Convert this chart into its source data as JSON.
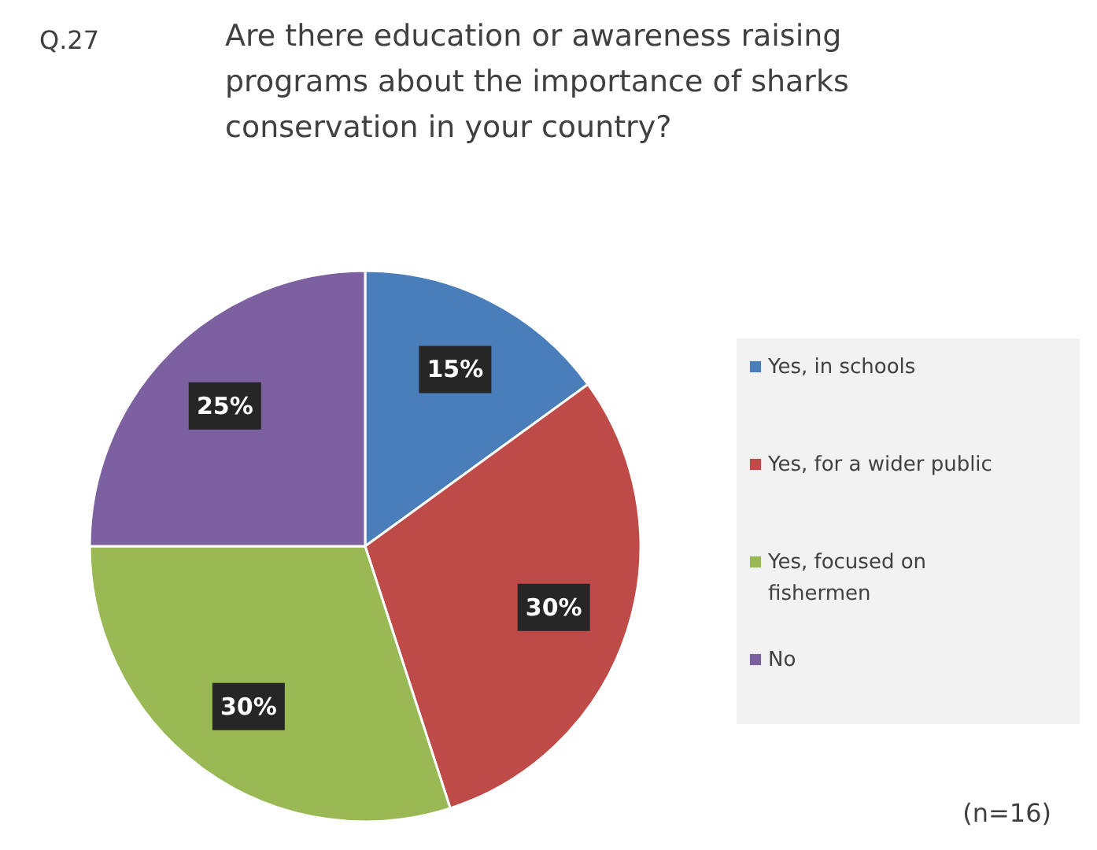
{
  "chart_data": {
    "type": "pie",
    "title": "Q.27",
    "subtitle": "Are there education or awareness raising programs about the importance of sharks conservation in your country?",
    "categories": [
      "Yes, in schools",
      "Yes, for a wider public",
      "Yes, focused on fishermen",
      "No"
    ],
    "values": [
      15,
      30,
      30,
      25
    ],
    "colors": [
      "#4a7ebb",
      "#be4b48",
      "#98b954",
      "#7d60a0"
    ],
    "value_labels": [
      "15%",
      "30%",
      "30%",
      "25%"
    ],
    "legend": "right",
    "annotations": [
      "(n=16)"
    ]
  }
}
